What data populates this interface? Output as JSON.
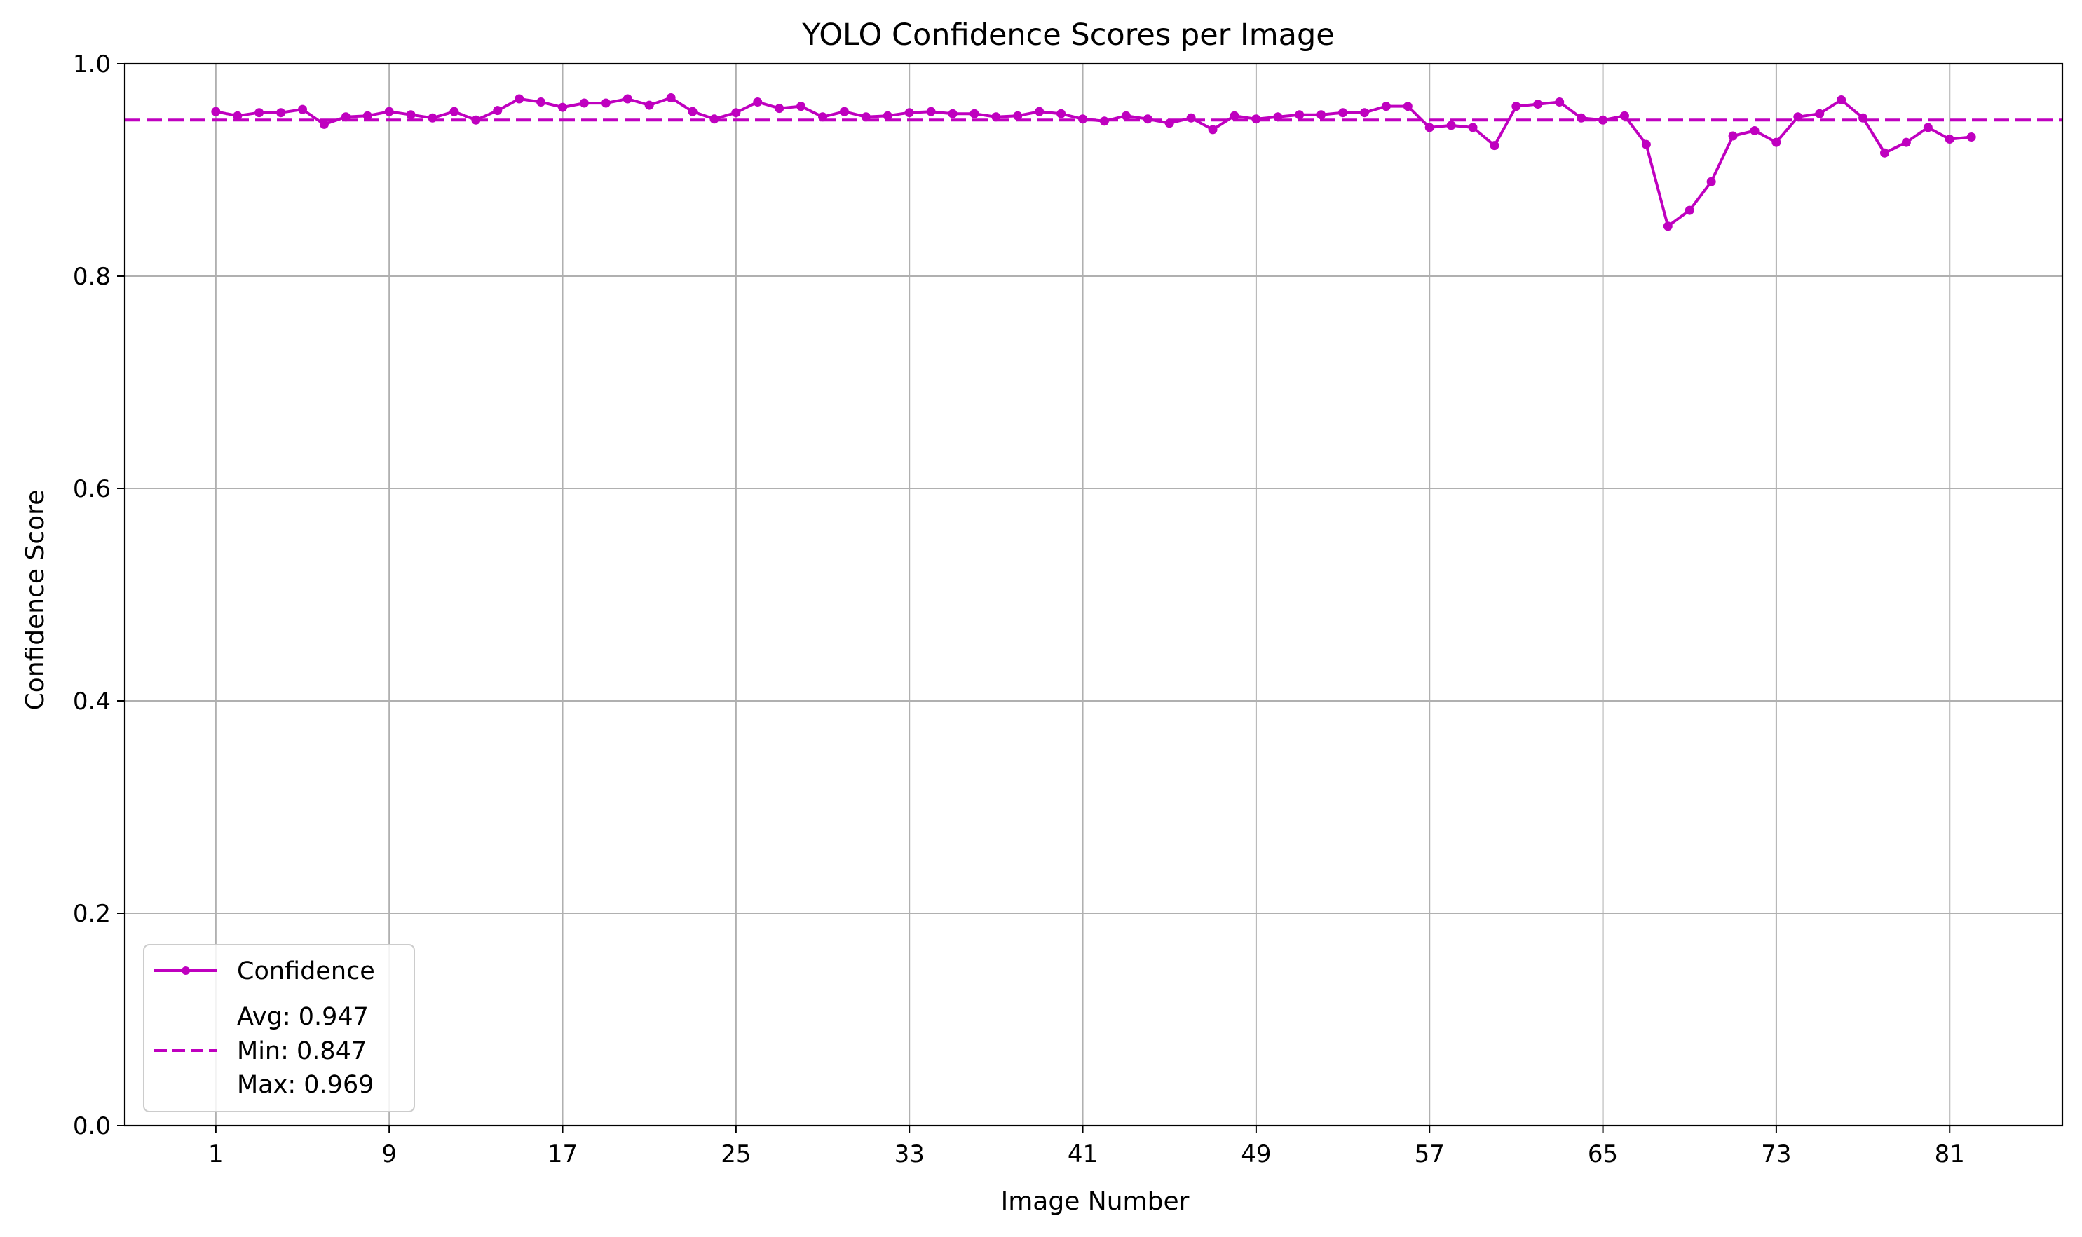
{
  "chart_data": {
    "type": "line",
    "title": "YOLO Confidence Scores per Image",
    "xlabel": "Image Number",
    "ylabel": "Confidence Score",
    "xlim": [
      -3.2,
      86.2
    ],
    "ylim": [
      0.0,
      1.0
    ],
    "xticks": [
      1,
      9,
      17,
      25,
      33,
      41,
      49,
      57,
      65,
      73,
      81
    ],
    "yticks": [
      0.0,
      0.2,
      0.4,
      0.6,
      0.8,
      1.0
    ],
    "ytick_labels": [
      "0.0",
      "0.2",
      "0.4",
      "0.6",
      "0.8",
      "1.0"
    ],
    "grid": true,
    "color": "#bf00bf",
    "series": [
      {
        "name": "Confidence",
        "x": [
          1,
          2,
          3,
          4,
          5,
          6,
          7,
          8,
          9,
          10,
          11,
          12,
          13,
          14,
          15,
          16,
          17,
          18,
          19,
          20,
          21,
          22,
          23,
          24,
          25,
          26,
          27,
          28,
          29,
          30,
          31,
          32,
          33,
          34,
          35,
          36,
          37,
          38,
          39,
          40,
          41,
          42,
          43,
          44,
          45,
          46,
          47,
          48,
          49,
          50,
          51,
          52,
          53,
          54,
          55,
          56,
          57,
          58,
          59,
          60,
          61,
          62,
          63,
          64,
          65,
          66,
          67,
          68,
          69,
          70,
          71,
          72,
          73,
          74,
          75,
          76,
          77,
          78,
          79,
          80,
          81,
          82
        ],
        "values": [
          0.955,
          0.951,
          0.954,
          0.954,
          0.957,
          0.943,
          0.95,
          0.951,
          0.955,
          0.952,
          0.949,
          0.955,
          0.947,
          0.956,
          0.967,
          0.964,
          0.959,
          0.963,
          0.963,
          0.967,
          0.961,
          0.968,
          0.955,
          0.948,
          0.954,
          0.964,
          0.958,
          0.96,
          0.95,
          0.955,
          0.95,
          0.951,
          0.954,
          0.955,
          0.953,
          0.953,
          0.95,
          0.951,
          0.955,
          0.953,
          0.948,
          0.946,
          0.951,
          0.948,
          0.944,
          0.949,
          0.938,
          0.951,
          0.948,
          0.95,
          0.952,
          0.952,
          0.954,
          0.954,
          0.96,
          0.96,
          0.94,
          0.942,
          0.94,
          0.923,
          0.96,
          0.962,
          0.964,
          0.949,
          0.947,
          0.951,
          0.924,
          0.847,
          0.862,
          0.889,
          0.932,
          0.937,
          0.926,
          0.95,
          0.953,
          0.966,
          0.949,
          0.916,
          0.926,
          0.94,
          0.929,
          0.931
        ]
      }
    ],
    "avg_line": {
      "name": "Avg: 0.947\nMin: 0.847\nMax: 0.969",
      "value": 0.947
    },
    "legend": {
      "position": "lower-left",
      "entries": [
        "Confidence",
        "Avg: 0.947",
        "Min: 0.847",
        "Max: 0.969"
      ]
    }
  }
}
